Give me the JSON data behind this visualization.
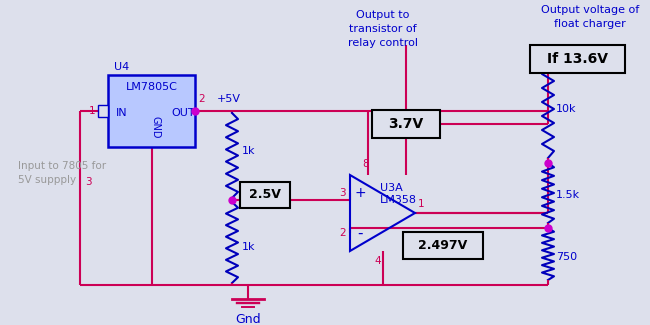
{
  "bg_color": "#dde0ec",
  "wire_color": "#cc0055",
  "blue_color": "#0000cc",
  "dot_color": "#cc00cc",
  "resistor_color": "#0000bb",
  "annotations": {
    "U4_label": "U4",
    "ic_label": "LM7805C",
    "in_label": "IN",
    "gnd_label": "GND",
    "out_label": "OUT",
    "pin1": "1",
    "pin2": "2",
    "pin3": "3",
    "pin4": "4",
    "pin8": "8",
    "pin3b": "3",
    "pin2b": "2",
    "pin1b": "1",
    "vplus": "+5V",
    "r1_label": "1k",
    "r2_label": "1k",
    "r3_label": "10k",
    "r4_label": "1.5k",
    "r5_label": "750",
    "v25": "2.5V",
    "v37": "3.7V",
    "v2497": "2.497V",
    "vif": "If 13.6V",
    "u3a": "U3A",
    "lm358": "LM358",
    "gnd_text": "Gnd",
    "input_text": "Input to 7805 for\n5V suppply",
    "output_relay": "Output to\ntransistor of\nrelay control",
    "output_voltage": "Output voltage of\nfloat charger",
    "plus_sign": "+",
    "minus_sign": "-"
  }
}
